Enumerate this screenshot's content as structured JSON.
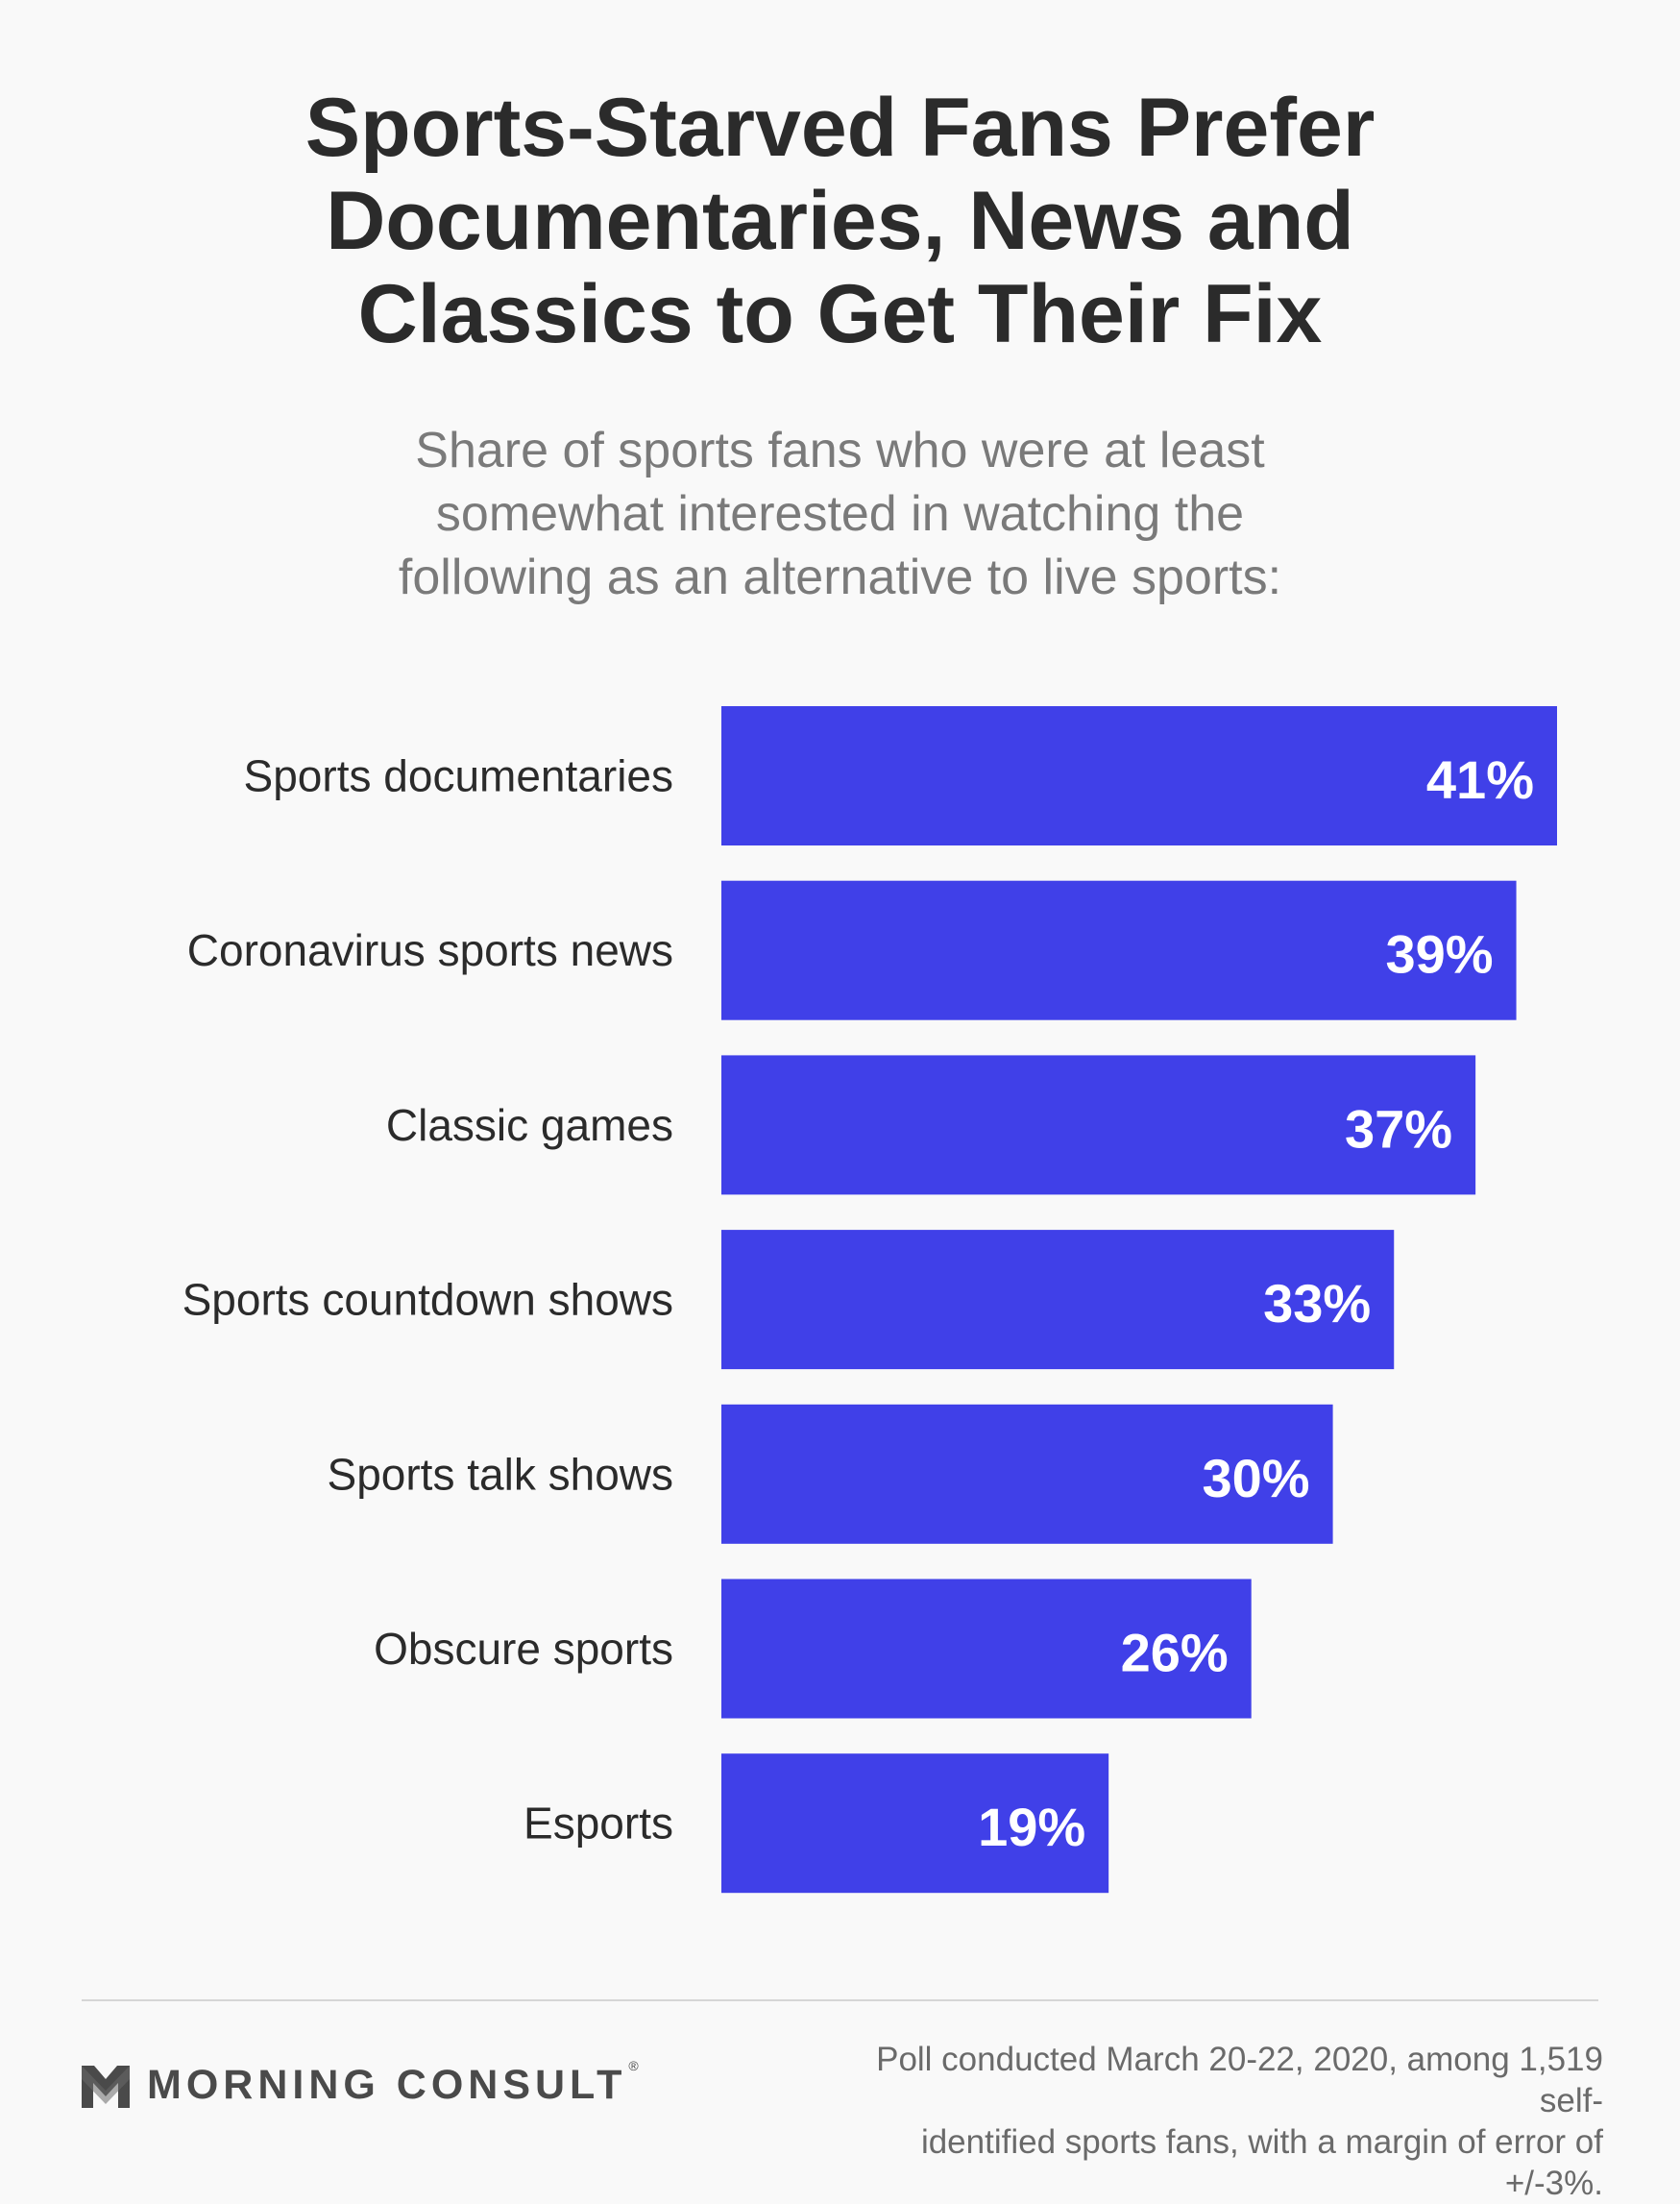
{
  "title_lines": [
    "Sports-Starved Fans Prefer",
    "Documentaries, News and",
    "Classics to Get Their Fix"
  ],
  "subtitle_lines": [
    "Share of sports fans who were at least",
    "somewhat interested in watching the",
    "following as an alternative to live sports:"
  ],
  "chart_data": {
    "type": "bar",
    "orientation": "horizontal",
    "categories": [
      "Sports documentaries",
      "Coronavirus sports news",
      "Classic games",
      "Sports countdown shows",
      "Sports talk shows",
      "Obscure sports",
      "Esports"
    ],
    "values": [
      41,
      39,
      37,
      33,
      30,
      26,
      19
    ],
    "value_labels": [
      "41%",
      "39%",
      "37%",
      "33%",
      "30%",
      "26%",
      "19%"
    ],
    "unit": "%",
    "bar_color": "#4040e8",
    "grid": false,
    "legend": "none"
  },
  "footer": {
    "brand": "MORNING CONSULT",
    "brand_mark": "®",
    "logo_icon": "morning-consult-m-logo",
    "note_lines": [
      "Poll conducted March 20-22, 2020, among 1,519 self-",
      "identified sports fans, with a margin of error of +/-3%."
    ]
  },
  "colors": {
    "background": "#f9f9f9",
    "title": "#2b2b2b",
    "subtitle": "#7a7a7a",
    "bar": "#4040e8",
    "bar_text": "#ffffff",
    "footer_text": "#6a6a6a"
  }
}
